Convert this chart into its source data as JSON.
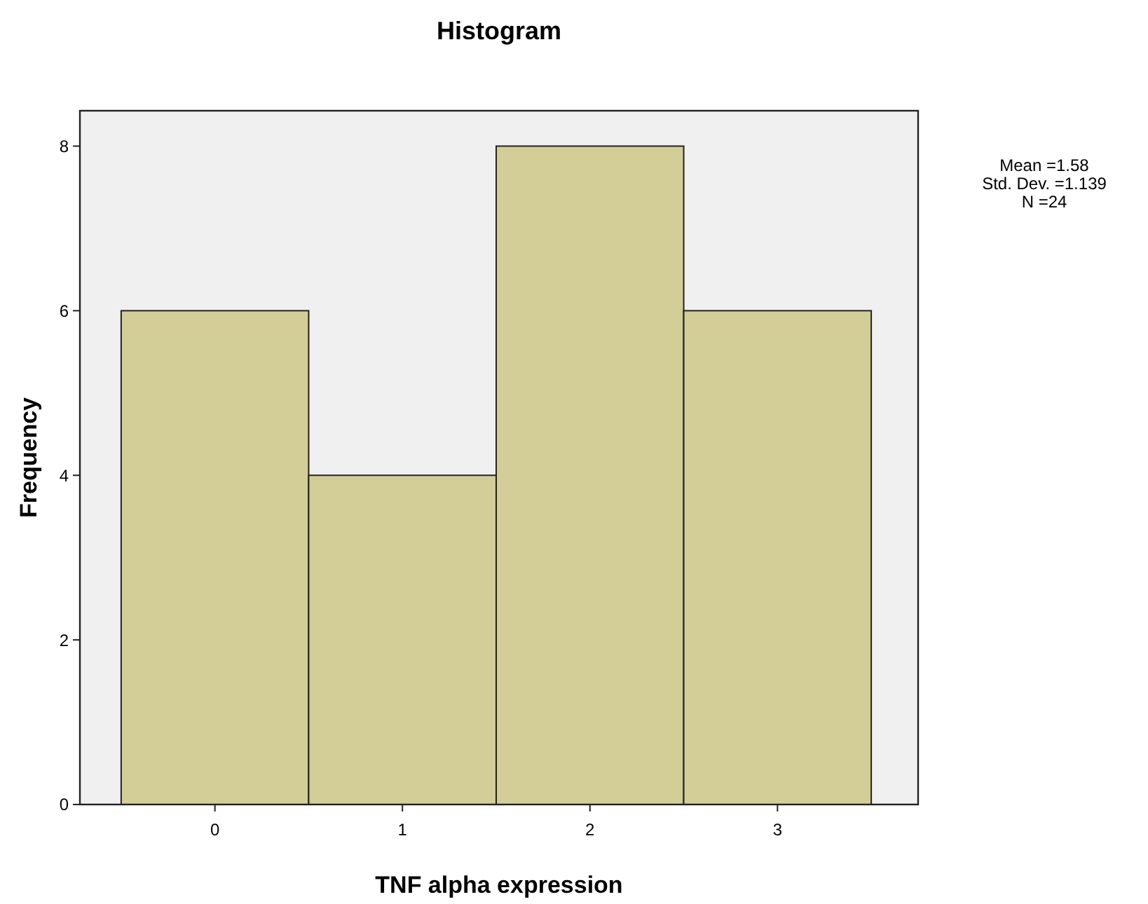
{
  "chart_data": {
    "type": "histogram",
    "title": "Histogram",
    "xlabel": "TNF alpha expression",
    "ylabel": "Frequency",
    "bins": [
      -0.5,
      0.5,
      1.5,
      2.5,
      3.5
    ],
    "values": [
      6,
      4,
      8,
      6
    ],
    "color": "#d3ce97",
    "xlim": [
      -0.72,
      3.75
    ],
    "xticks": [
      0,
      1,
      2,
      3
    ],
    "ylim": [
      0,
      8.43
    ],
    "yticks": [
      0,
      2,
      4,
      6,
      8
    ],
    "annotations": [
      "Mean =1.58",
      "Std. Dev. =1.139",
      "N =24"
    ]
  }
}
